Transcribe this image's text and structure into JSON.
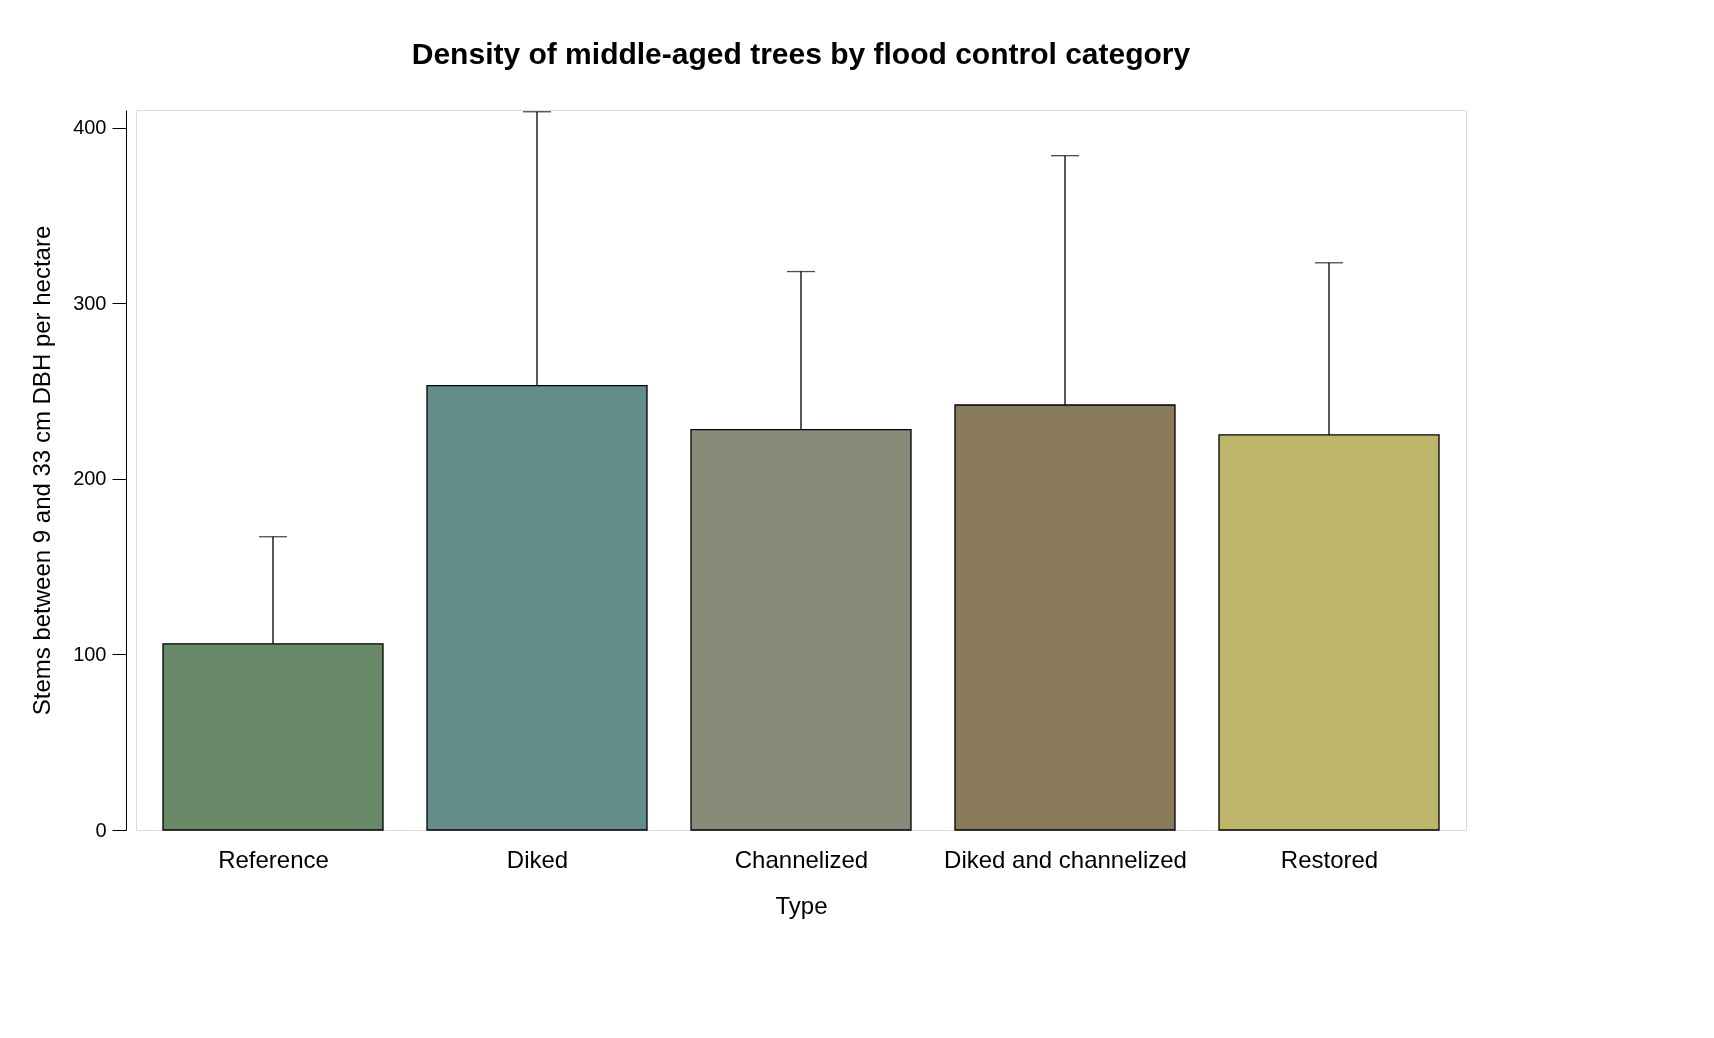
{
  "chart_data": {
    "type": "bar",
    "title": "Density of middle-aged trees by flood control category",
    "xlabel": "Type",
    "ylabel": "Stems between 9 and 33 cm DBH per hectare",
    "categories": [
      "Reference",
      "Diked",
      "Channelized",
      "Diked and channelized",
      "Restored"
    ],
    "values": [
      106,
      253,
      228,
      242,
      225
    ],
    "errors": [
      [
        106,
        167
      ],
      [
        253,
        409
      ],
      [
        228,
        318
      ],
      [
        242,
        384
      ],
      [
        225,
        323
      ]
    ],
    "colors": [
      "#688a68",
      "#648c88",
      "#8a8a78",
      "#8a7a5c",
      "#bdb66a"
    ],
    "ylim": [
      0,
      410
    ],
    "yticks": [
      0,
      100,
      200,
      300,
      400
    ],
    "grid": false
  }
}
